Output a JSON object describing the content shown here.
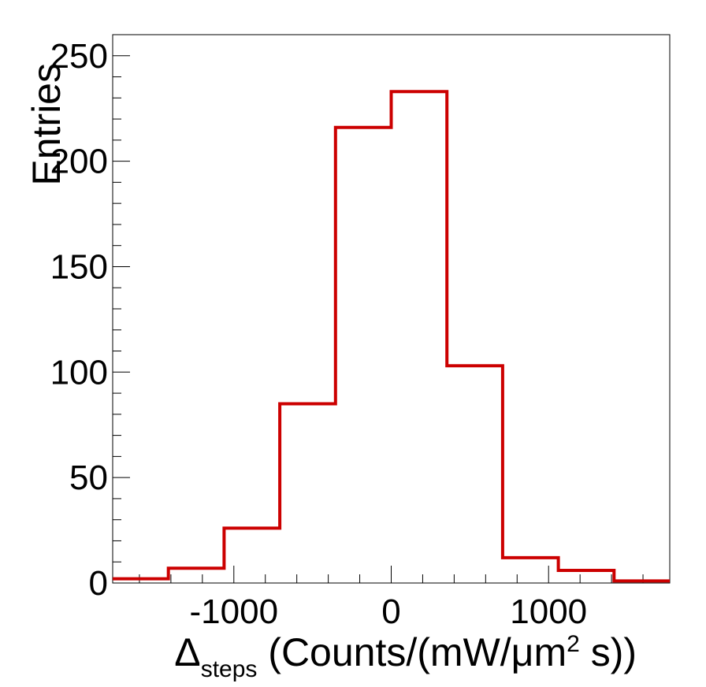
{
  "chart_data": {
    "type": "histogram",
    "title": "",
    "xlabel": {
      "symbol": "Δ",
      "subscript": "steps",
      "rest": " (Counts/(mW/μm",
      "superscript": "2",
      "tail": " s))"
    },
    "ylabel": "Entries",
    "xlim": [
      -1770,
      1770
    ],
    "ylim": [
      0,
      260
    ],
    "bin_edges": [
      -1770,
      -1416,
      -1062,
      -708,
      -354,
      0,
      354,
      708,
      1062,
      1416,
      1770
    ],
    "values": [
      2,
      7,
      26,
      85,
      216,
      233,
      103,
      12,
      6,
      1
    ],
    "x_ticks": [
      -1000,
      0,
      1000
    ],
    "x_tick_labels": [
      "-1000",
      "0",
      "1000"
    ],
    "x_minor_step": 200,
    "y_ticks": [
      0,
      50,
      100,
      150,
      200,
      250
    ],
    "y_tick_labels": [
      "0",
      "50",
      "100",
      "150",
      "200",
      "250"
    ],
    "y_minor_step": 10,
    "line_color": "#cc0000",
    "legend": "none",
    "grid": false
  }
}
